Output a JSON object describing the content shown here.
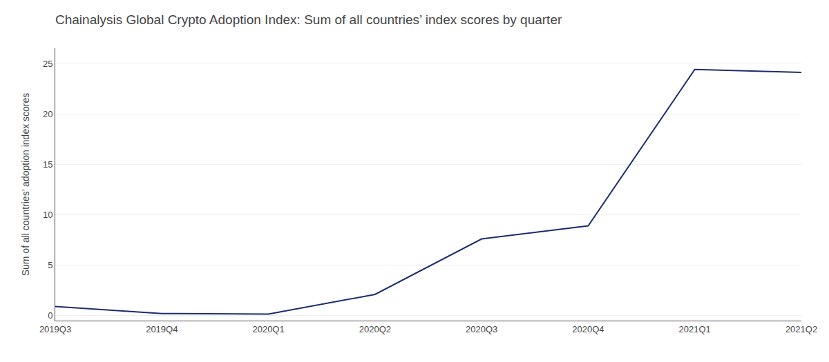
{
  "chart_data": {
    "type": "line",
    "title": "Chainalysis Global Crypto Adoption Index: Sum of all countries’ index scores by quarter",
    "ylabel": "Sum of all countries’ adoption index scores",
    "categories": [
      "2019Q3",
      "2019Q4",
      "2020Q1",
      "2020Q2",
      "2020Q3",
      "2020Q4",
      "2021Q1",
      "2021Q2"
    ],
    "values": [
      0.9,
      0.2,
      0.15,
      2.1,
      7.6,
      8.9,
      24.4,
      24.1
    ],
    "color": "#1a2d6e",
    "ylim": [
      -0.5,
      26.5
    ],
    "yticks": [
      0,
      5,
      10,
      15,
      20,
      25
    ],
    "grid": true
  }
}
